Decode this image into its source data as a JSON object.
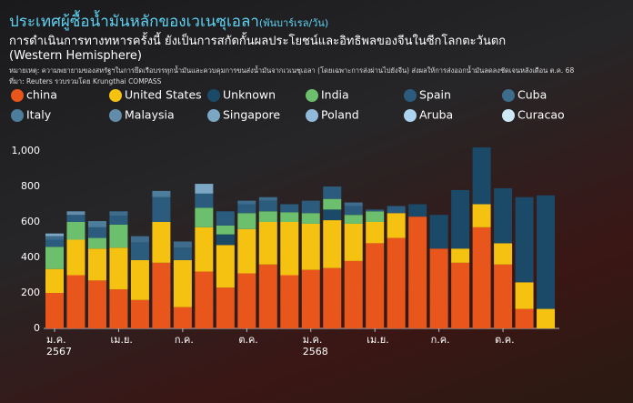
{
  "chart_data": {
    "type": "stacked_bar",
    "title": "ประเทศผู้ซื้อน้ำมันหลักของเวเนซุเอลา",
    "unit": "(พันบาร์เรล/วัน)",
    "subtitle": "การดำเนินการทางทหารครั้งนี้ ยังเป็นการสกัดกั้นผลประโยชน์และอิทธิพลของจีนในซีกโลกตะวันตก (Western Hemisphere)",
    "note": "หมายเหตุ: ความพยายามของสหรัฐฯในการยึดเรือบรรทุกน้ำมันและควบคุมการขนส่งน้ำมันจากเวเนซุเอลา (โดยเฉพาะการส่งผ่านไปยังจีน) ส่งผลให้การส่งออกน้ำมันลดลงชัดเจนหลังเดือน ต.ค. 68",
    "source": "ที่มา: Reuters รวบรวมโดย Krungthai COMPASS",
    "categories": [
      "ม.ค. 2567",
      null,
      null,
      "เม.ย.",
      null,
      null,
      "ก.ค.",
      null,
      null,
      "ต.ค.",
      null,
      null,
      "ม.ค. 2568",
      null,
      null,
      "เม.ย.",
      null,
      null,
      "ก.ค.",
      null,
      null,
      "ต.ค.",
      null,
      null
    ],
    "ylim": [
      0,
      1050
    ],
    "yticks": [
      0,
      200,
      400,
      600,
      800,
      {
        "value": 1000,
        "label": "1,000"
      }
    ],
    "grid": false,
    "series": [
      {
        "name": "china",
        "color": "#e8561c",
        "values": [
          200,
          300,
          270,
          220,
          160,
          370,
          120,
          320,
          230,
          310,
          360,
          300,
          330,
          340,
          380,
          480,
          510,
          630,
          450,
          370,
          570,
          360,
          110,
          0
        ]
      },
      {
        "name": "United States",
        "color": "#f5c211",
        "values": [
          135,
          200,
          180,
          235,
          225,
          230,
          265,
          250,
          240,
          250,
          240,
          300,
          260,
          270,
          210,
          120,
          140,
          0,
          0,
          80,
          130,
          120,
          150,
          110
        ]
      },
      {
        "name": "Unknown",
        "color": "#1b4a68",
        "values": [
          0,
          0,
          0,
          0,
          0,
          0,
          0,
          0,
          60,
          0,
          0,
          0,
          0,
          60,
          0,
          0,
          0,
          70,
          190,
          330,
          320,
          310,
          480,
          640
        ]
      },
      {
        "name": "India",
        "color": "#6cbf6c",
        "values": [
          125,
          100,
          60,
          130,
          0,
          0,
          0,
          110,
          50,
          90,
          60,
          55,
          60,
          60,
          50,
          60,
          0,
          0,
          0,
          0,
          0,
          0,
          0,
          0
        ]
      },
      {
        "name": "Spain",
        "color": "#2b5c7e",
        "values": [
          40,
          40,
          60,
          50,
          100,
          140,
          70,
          80,
          80,
          50,
          60,
          45,
          70,
          70,
          50,
          10,
          40,
          0,
          0,
          0,
          0,
          0,
          0,
          0
        ]
      },
      {
        "name": "Cuba",
        "color": "#3d6c8c",
        "values": [
          20,
          0,
          0,
          25,
          35,
          0,
          35,
          0,
          0,
          20,
          20,
          0,
          0,
          0,
          20,
          0,
          0,
          0,
          0,
          0,
          0,
          0,
          0,
          0
        ]
      },
      {
        "name": "Italy",
        "color": "#4c7e9c",
        "values": [
          0,
          0,
          35,
          0,
          0,
          35,
          0,
          0,
          0,
          0,
          0,
          0,
          0,
          0,
          0,
          0,
          0,
          0,
          0,
          0,
          0,
          0,
          0,
          0
        ]
      },
      {
        "name": "Malaysia",
        "color": "#628daa",
        "values": [
          0,
          20,
          0,
          0,
          0,
          0,
          0,
          0,
          0,
          0,
          0,
          0,
          0,
          0,
          0,
          0,
          0,
          0,
          0,
          0,
          0,
          0,
          0,
          0
        ]
      },
      {
        "name": "Singapore",
        "color": "#7ba6c4",
        "values": [
          15,
          0,
          0,
          0,
          0,
          0,
          0,
          55,
          0,
          0,
          0,
          0,
          0,
          0,
          0,
          0,
          0,
          0,
          0,
          0,
          0,
          0,
          0,
          0
        ]
      },
      {
        "name": "Poland",
        "color": "#90b9da",
        "values": [
          0,
          0,
          0,
          0,
          0,
          0,
          0,
          0,
          0,
          0,
          0,
          0,
          0,
          0,
          0,
          0,
          0,
          0,
          0,
          0,
          0,
          0,
          0,
          0
        ]
      },
      {
        "name": "Aruba",
        "color": "#acd3ef",
        "values": [
          0,
          0,
          0,
          0,
          0,
          0,
          0,
          0,
          0,
          0,
          0,
          0,
          0,
          0,
          0,
          0,
          0,
          0,
          0,
          0,
          0,
          0,
          0,
          0
        ]
      },
      {
        "name": "Curacao",
        "color": "#cde9f7",
        "values": [
          0,
          0,
          0,
          0,
          0,
          0,
          0,
          0,
          0,
          0,
          0,
          0,
          0,
          0,
          0,
          0,
          0,
          0,
          0,
          0,
          0,
          0,
          0,
          0
        ]
      }
    ]
  }
}
